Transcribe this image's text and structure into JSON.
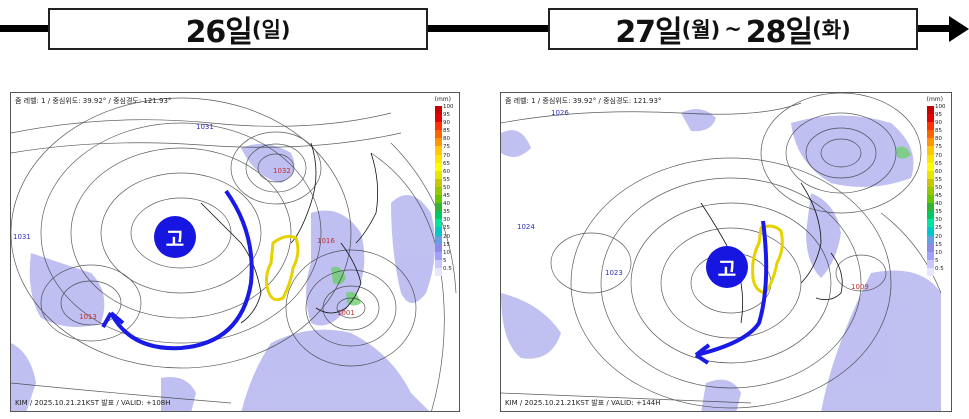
{
  "header": {
    "box1": {
      "day": "26일",
      "weekday": "(일)"
    },
    "box2": {
      "day1": "27일",
      "weekday1": "(월)",
      "sep": " ~ ",
      "day2": "28일",
      "weekday2": "(화)"
    }
  },
  "maps": [
    {
      "header": "줌 레벨: 1 / 중심위도: 39.92° / 중심경도: 121.93°",
      "footer": "KIM / 2025.10.21.21KST 발표 / VALID: +108H",
      "high_label": "고",
      "pressure_labels": [
        "1031",
        "1032",
        "1016",
        "1001",
        "1013",
        "1031"
      ]
    },
    {
      "header": "줌 레벨: 1 / 중심위도: 39.92° / 중심경도: 121.93°",
      "footer": "KIM / 2025.10.21.21KST 발표 / VALID: +144H",
      "high_label": "고",
      "pressure_labels": [
        "1026",
        "1024",
        "1023",
        "1009"
      ]
    }
  ],
  "colorbar": {
    "unit": "(mm)",
    "labels": [
      "100",
      "95",
      "90",
      "85",
      "80",
      "75",
      "70",
      "65",
      "60",
      "55",
      "50",
      "45",
      "40",
      "35",
      "30",
      "25",
      "20",
      "15",
      "10",
      "5",
      "0.5"
    ],
    "colors": [
      "#c80000",
      "#e60000",
      "#ff3200",
      "#ff6400",
      "#ff9600",
      "#ffc800",
      "#ffe600",
      "#ffff00",
      "#e6e600",
      "#c8c800",
      "#96c800",
      "#64c800",
      "#32b432",
      "#00c864",
      "#00e6a0",
      "#00c8c8",
      "#64a0e6",
      "#8c8ce6",
      "#a0a0ff",
      "#c8c8ff",
      "#e6e6ff"
    ]
  },
  "colors": {
    "high": "#1616e0",
    "arrow": "#1a1ae6",
    "precip": "#8c8ce6",
    "korea_outline": "#e6d200"
  }
}
